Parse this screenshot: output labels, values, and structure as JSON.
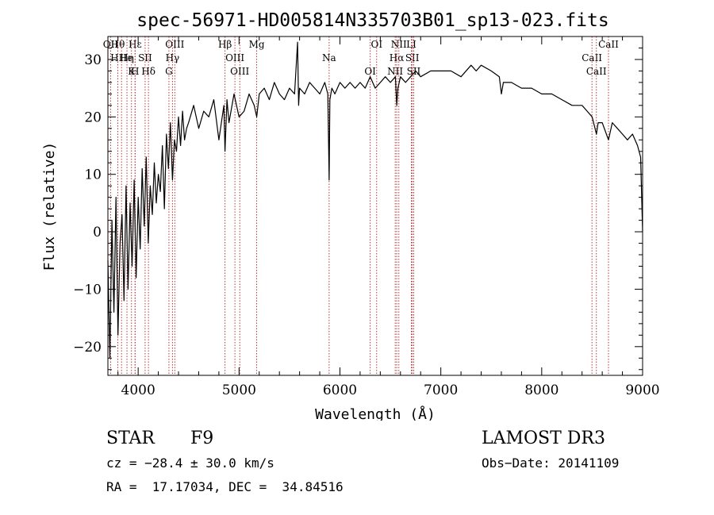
{
  "chart_data": {
    "type": "line",
    "title": "spec-56971-HD005814N335703B01_sp13-023.fits",
    "xlabel": "Wavelength (Å)",
    "ylabel": "Flux (relative)",
    "xlim": [
      3700,
      9000
    ],
    "ylim": [
      -25,
      34
    ],
    "xticks": [
      4000,
      5000,
      6000,
      7000,
      8000,
      9000
    ],
    "yticks": [
      -20,
      -10,
      0,
      10,
      20,
      30
    ],
    "xtick_labels": [
      "4000",
      "5000",
      "6000",
      "7000",
      "8000",
      "9000"
    ],
    "ytick_labels": [
      "−20",
      "−10",
      "0",
      "10",
      "20",
      "30"
    ],
    "series": [
      {
        "name": "spectrum",
        "x": [
          3700,
          3720,
          3740,
          3760,
          3780,
          3800,
          3820,
          3840,
          3860,
          3880,
          3900,
          3920,
          3940,
          3960,
          3980,
          4000,
          4020,
          4040,
          4060,
          4080,
          4100,
          4120,
          4140,
          4160,
          4180,
          4200,
          4220,
          4240,
          4260,
          4280,
          4300,
          4320,
          4340,
          4360,
          4380,
          4400,
          4420,
          4440,
          4460,
          4480,
          4500,
          4550,
          4600,
          4650,
          4700,
          4750,
          4800,
          4850,
          4861,
          4880,
          4900,
          4950,
          5000,
          5050,
          5100,
          5150,
          5175,
          5200,
          5250,
          5300,
          5350,
          5400,
          5450,
          5500,
          5550,
          5580,
          5590,
          5600,
          5650,
          5700,
          5750,
          5800,
          5850,
          5880,
          5893,
          5900,
          5920,
          5950,
          6000,
          6050,
          6100,
          6150,
          6200,
          6250,
          6300,
          6350,
          6400,
          6450,
          6500,
          6550,
          6563,
          6575,
          6600,
          6650,
          6700,
          6750,
          6800,
          6900,
          7000,
          7100,
          7200,
          7300,
          7350,
          7400,
          7500,
          7580,
          7600,
          7620,
          7700,
          7800,
          7900,
          8000,
          8100,
          8200,
          8300,
          8400,
          8450,
          8500,
          8542,
          8560,
          8600,
          8662,
          8700,
          8750,
          8800,
          8850,
          8900,
          8950,
          8980,
          9000
        ],
        "y": [
          -5,
          -22,
          2,
          -14,
          6,
          -18,
          -2,
          3,
          -12,
          8,
          -10,
          5,
          -6,
          9,
          -8,
          6,
          -3,
          11,
          1,
          13,
          -2,
          8,
          3,
          12,
          5,
          10,
          7,
          15,
          4,
          17,
          11,
          19,
          9,
          16,
          14,
          20,
          15,
          21,
          16,
          18,
          19,
          22,
          18,
          21,
          20,
          23,
          16,
          22,
          14,
          23,
          19,
          24,
          20,
          21,
          24,
          22,
          20,
          24,
          25,
          23,
          26,
          24,
          23,
          25,
          24,
          33,
          22,
          25,
          24,
          26,
          25,
          24,
          26,
          24,
          9,
          23,
          25,
          24,
          26,
          25,
          26,
          25,
          26,
          25,
          27,
          25,
          26,
          27,
          26,
          27,
          22,
          25,
          27,
          26,
          27,
          28,
          27,
          28,
          28,
          28,
          27,
          29,
          28,
          29,
          28,
          27,
          24,
          26,
          26,
          25,
          25,
          24,
          24,
          23,
          22,
          22,
          21,
          20,
          17,
          19,
          19,
          16,
          19,
          18,
          17,
          16,
          17,
          15,
          13,
          0
        ]
      }
    ],
    "line_markers": [
      {
        "label": "Hθ",
        "x": 3798
      },
      {
        "label": "HHe",
        "x": 3835
      },
      {
        "label": "K",
        "x": 3934
      },
      {
        "label": "Hε",
        "x": 3970
      },
      {
        "label": "SII",
        "x": 4069
      },
      {
        "label": "Hδ",
        "x": 4102
      },
      {
        "label": "OII",
        "x": 3727
      },
      {
        "label": "Hη",
        "x": 3889
      },
      {
        "label": "H",
        "x": 3969
      },
      {
        "label": "OIII",
        "x": 4363
      },
      {
        "label": "Hγ",
        "x": 4340
      },
      {
        "label": "G",
        "x": 4305
      },
      {
        "label": "Hβ",
        "x": 4861
      },
      {
        "label": "OIII",
        "x": 4959
      },
      {
        "label": "OIII",
        "x": 5007
      },
      {
        "label": "Mg",
        "x": 5175
      },
      {
        "label": "Na",
        "x": 5893
      },
      {
        "label": "OI",
        "x": 6300
      },
      {
        "label": "OI",
        "x": 6364
      },
      {
        "label": "Hα",
        "x": 6563
      },
      {
        "label": "NII",
        "x": 6548
      },
      {
        "label": "NII",
        "x": 6584
      },
      {
        "label": "SII",
        "x": 6717
      },
      {
        "label": "SII",
        "x": 6731
      },
      {
        "label": "LI",
        "x": 6708
      },
      {
        "label": "CaII",
        "x": 8498
      },
      {
        "label": "CaII",
        "x": 8542
      },
      {
        "label": "CaII",
        "x": 8662
      }
    ]
  },
  "info": {
    "object_type": "STAR",
    "subclass": "F9",
    "survey": "LAMOST DR3",
    "redshift": "cz = −28.4 ± 30.0 km/s",
    "obs_date": "Obs−Date: 20141109",
    "coords": "RA =  17.17034, DEC =  34.84516"
  },
  "colors": {
    "spectrum": "#000000",
    "line_marker": "#b22222",
    "axis": "#000000",
    "background": "#ffffff"
  }
}
